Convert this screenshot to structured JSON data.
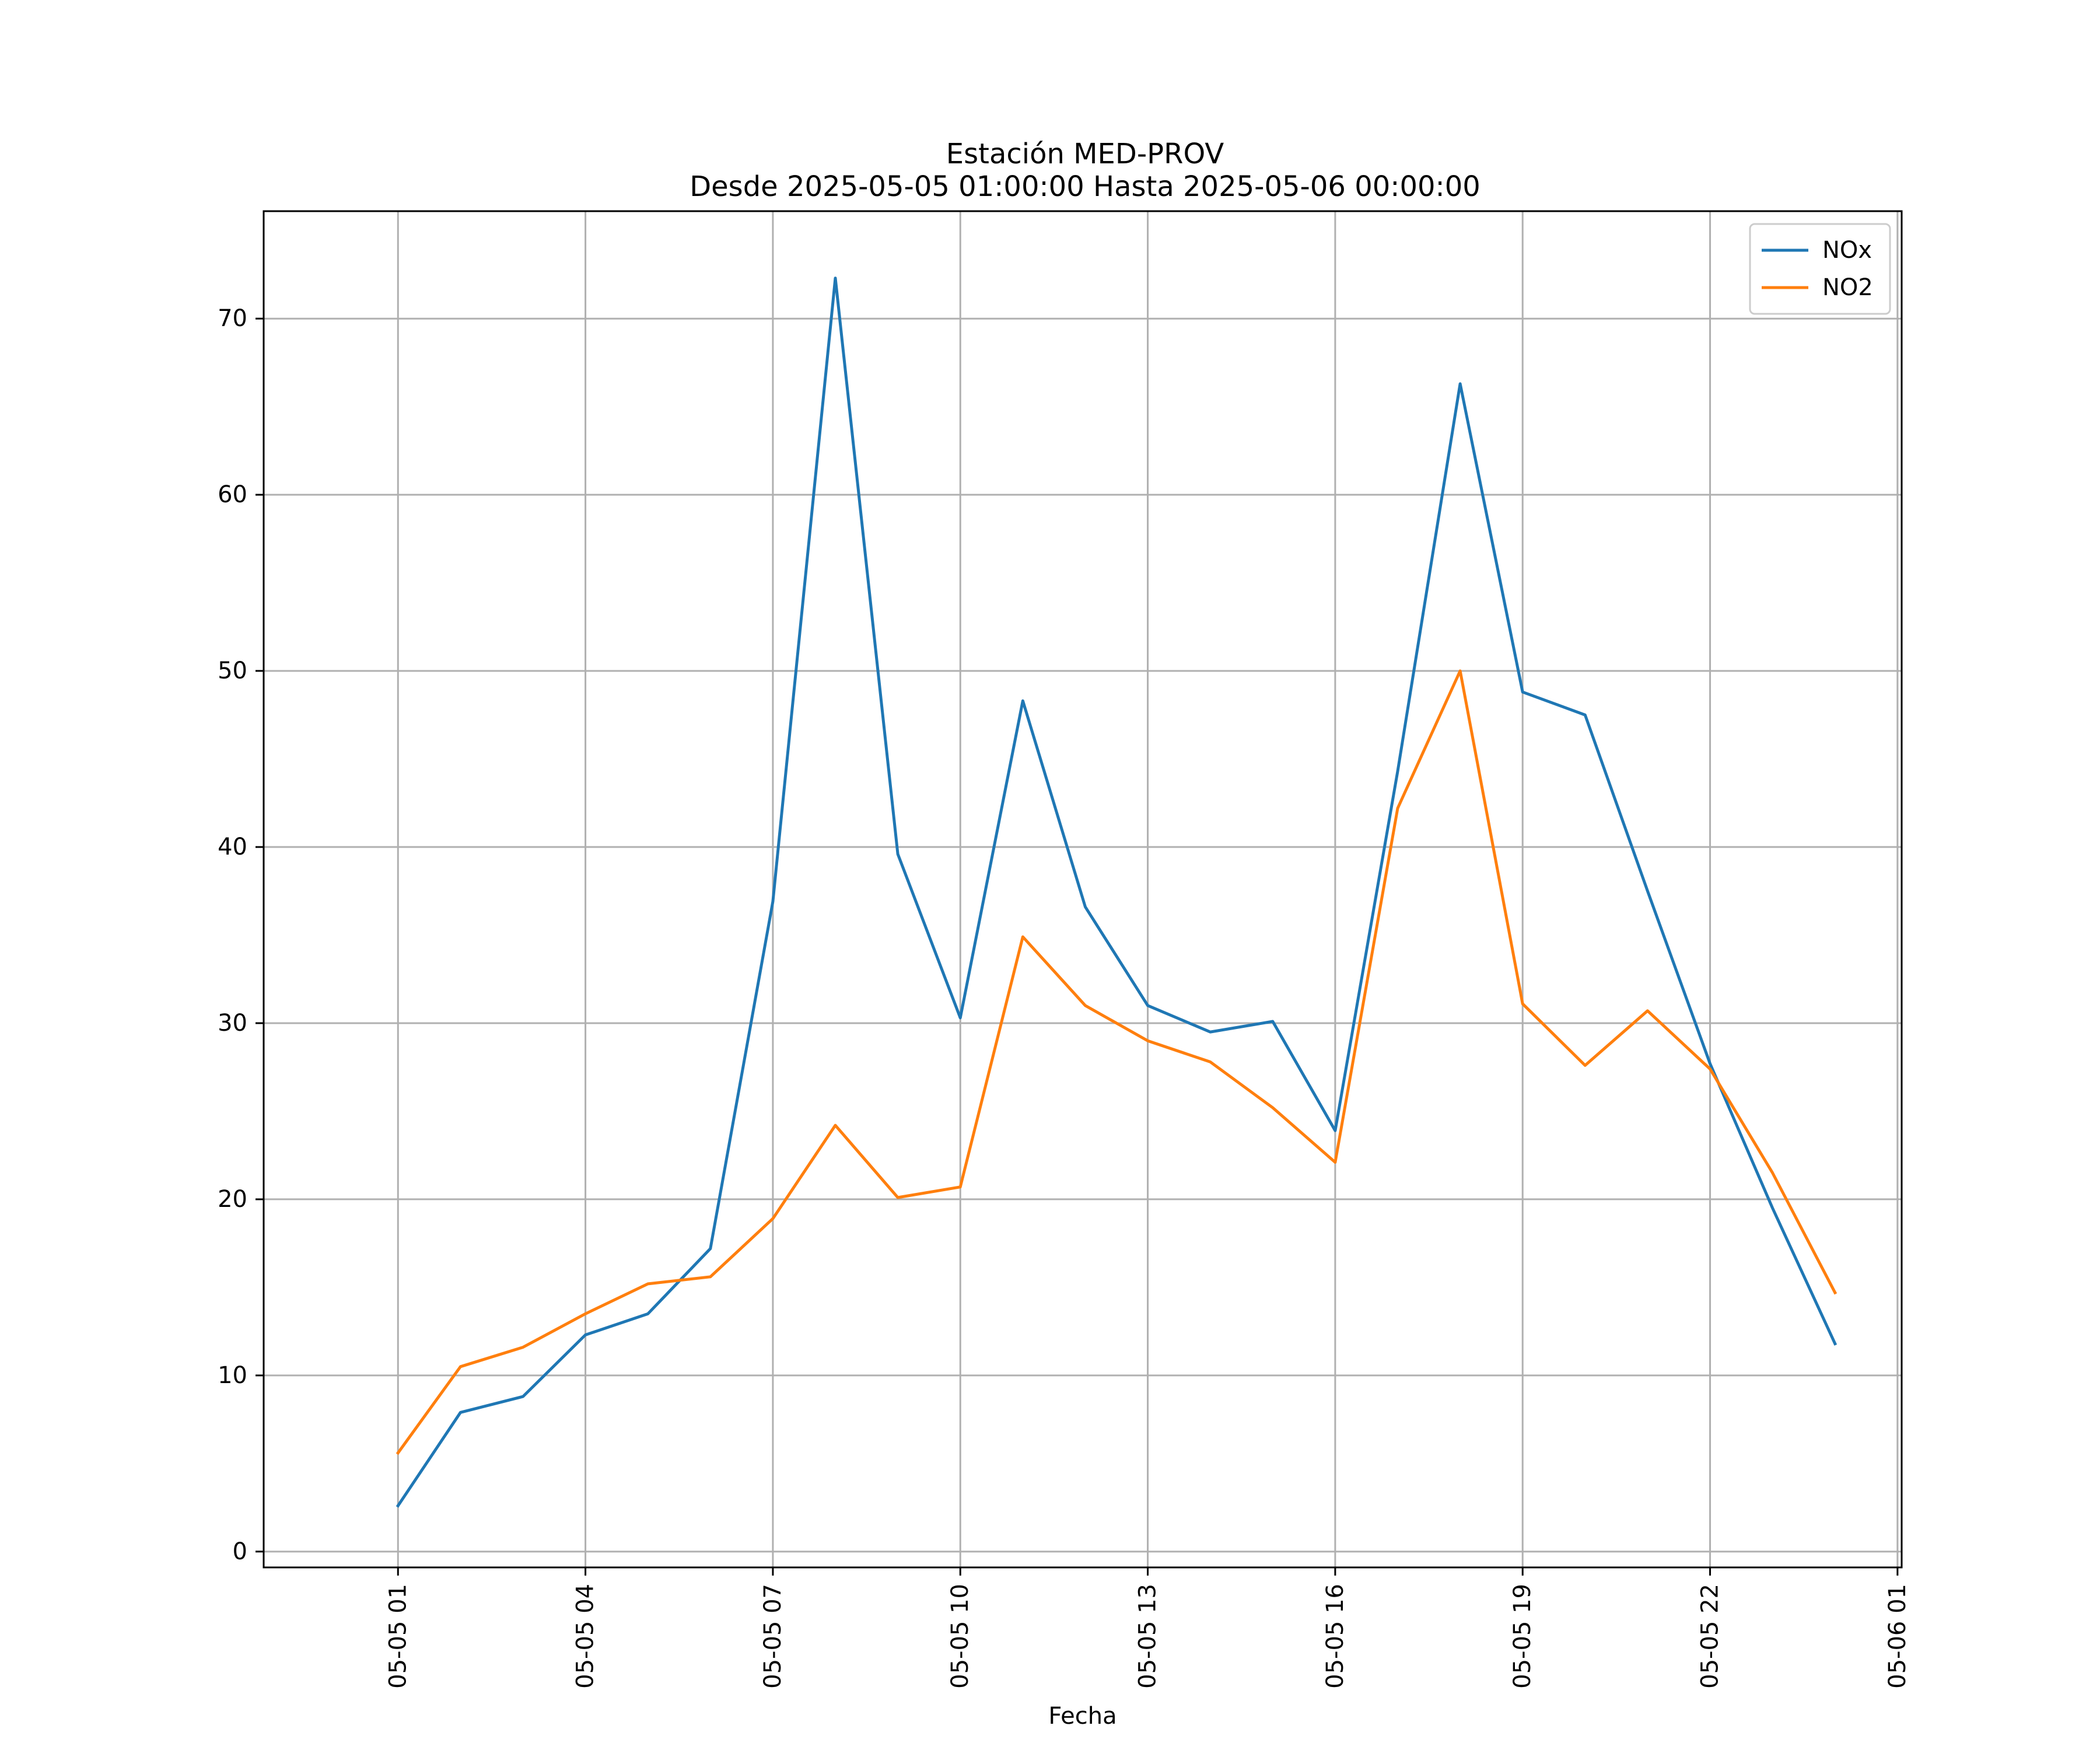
{
  "chart_data": {
    "type": "line",
    "title": "Estación MED-PROV",
    "subtitle": "Desde 2025-05-05 01:00:00 Hasta 2025-05-06 00:00:00",
    "xlabel": "Fecha",
    "ylabel": "",
    "x": [
      "2025-05-05 01:00",
      "2025-05-05 02:00",
      "2025-05-05 03:00",
      "2025-05-05 04:00",
      "2025-05-05 05:00",
      "2025-05-05 06:00",
      "2025-05-05 07:00",
      "2025-05-05 08:00",
      "2025-05-05 09:00",
      "2025-05-05 10:00",
      "2025-05-05 11:00",
      "2025-05-05 12:00",
      "2025-05-05 13:00",
      "2025-05-05 14:00",
      "2025-05-05 15:00",
      "2025-05-05 16:00",
      "2025-05-05 17:00",
      "2025-05-05 18:00",
      "2025-05-05 19:00",
      "2025-05-05 20:00",
      "2025-05-05 21:00",
      "2025-05-05 22:00",
      "2025-05-05 23:00",
      "2025-05-06 00:00"
    ],
    "series": [
      {
        "name": "NOx",
        "color": "#1f77b4",
        "values": [
          2.6,
          7.9,
          8.8,
          12.3,
          13.5,
          17.2,
          36.9,
          72.3,
          39.6,
          30.3,
          48.3,
          36.6,
          31.0,
          29.5,
          30.1,
          23.9,
          44.3,
          66.3,
          48.8,
          47.5,
          37.5,
          27.7,
          19.5,
          11.8
        ]
      },
      {
        "name": "NO2",
        "color": "#ff7f0e",
        "values": [
          5.6,
          10.5,
          11.6,
          13.5,
          15.2,
          15.6,
          18.9,
          24.2,
          20.1,
          20.7,
          34.9,
          31.0,
          29.0,
          27.8,
          25.2,
          22.1,
          42.2,
          50.0,
          31.1,
          27.6,
          30.7,
          27.4,
          21.5,
          14.7
        ]
      }
    ],
    "xticks": [
      {
        "label": "05-05 01",
        "hour": 1
      },
      {
        "label": "05-05 04",
        "hour": 4
      },
      {
        "label": "05-05 07",
        "hour": 7
      },
      {
        "label": "05-05 10",
        "hour": 10
      },
      {
        "label": "05-05 13",
        "hour": 13
      },
      {
        "label": "05-05 16",
        "hour": 16
      },
      {
        "label": "05-05 19",
        "hour": 19
      },
      {
        "label": "05-05 22",
        "hour": 22
      },
      {
        "label": "05-06 01",
        "hour": 25
      }
    ],
    "yticks": [
      0,
      10,
      20,
      30,
      40,
      50,
      60,
      70
    ],
    "xlim": [
      "2025-05-04 22:51",
      "2025-05-06 01:04"
    ],
    "ylim": [
      -0.9,
      76.1
    ],
    "grid": true,
    "legend_position": "top-right"
  }
}
